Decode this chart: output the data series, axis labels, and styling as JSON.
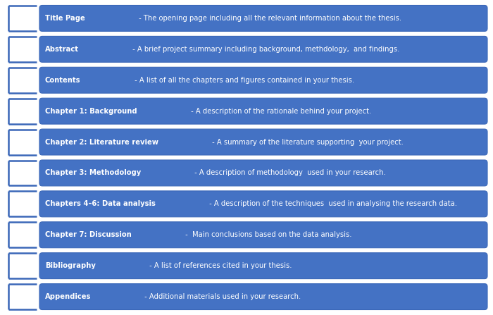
{
  "background_color": "#ffffff",
  "box_fill_color": "#4472c4",
  "box_edge_color": "#3a67b8",
  "bracket_color": "#3a67b8",
  "text_color": "#ffffff",
  "items": [
    {
      "bold": "Title Page",
      "normal": " - The opening page including all the relevant information about the thesis."
    },
    {
      "bold": "Abstract",
      "normal": " - A brief project summary including background, methdology,  and findings."
    },
    {
      "bold": "Contents",
      "normal": " - A list of all the chapters and figures contained in your thesis."
    },
    {
      "bold": "Chapter 1: Background",
      "normal": " - A description of the rationale behind your project."
    },
    {
      "bold": "Chapter 2: Literature review",
      "normal": " - A summary of the literature supporting  your project."
    },
    {
      "bold": "Chapter 3: Methodology",
      "normal": " - A description of methodology  used in your research."
    },
    {
      "bold": "Chapters 4–6: Data analysis",
      "normal": " - A description of the techniques  used in analysing the research data."
    },
    {
      "bold": "Chapter 7: Discussion",
      "normal": " -  Main conclusions based on the data analysis."
    },
    {
      "bold": "Bibliography",
      "normal": " - A list of references cited in your thesis."
    },
    {
      "bold": "Appendices",
      "normal": " - Additional materials used in your research."
    }
  ],
  "fig_width": 7.0,
  "fig_height": 4.47,
  "dpi": 100
}
